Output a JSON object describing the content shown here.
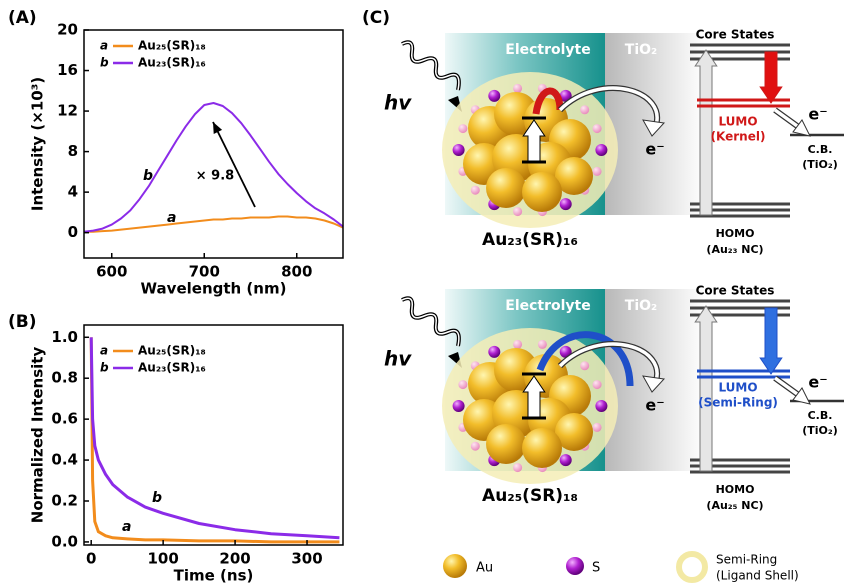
{
  "chart_data": [
    {
      "type": "line",
      "panel_label": "(A)",
      "xlabel": "Wavelength (nm)",
      "ylabel": "Intensity (×10³)",
      "x": [
        570,
        580,
        590,
        600,
        610,
        620,
        630,
        640,
        650,
        660,
        670,
        680,
        690,
        700,
        710,
        720,
        730,
        740,
        750,
        760,
        770,
        780,
        790,
        800,
        810,
        820,
        830,
        840,
        850
      ],
      "xlim": [
        570,
        850
      ],
      "xticks": [
        600,
        700,
        800
      ],
      "ylim": [
        -2.5,
        20
      ],
      "yticks": [
        0,
        4,
        8,
        12,
        16,
        20
      ],
      "annotation": "× 9.8",
      "series": [
        {
          "label": "a",
          "name": "Au₂₅(SR)₁₈",
          "color": "#f28c1c",
          "values": [
            0.1,
            0.1,
            0.15,
            0.2,
            0.3,
            0.4,
            0.5,
            0.6,
            0.7,
            0.8,
            0.9,
            1.0,
            1.1,
            1.2,
            1.3,
            1.3,
            1.4,
            1.4,
            1.5,
            1.5,
            1.5,
            1.6,
            1.6,
            1.5,
            1.5,
            1.4,
            1.2,
            0.9,
            0.5
          ]
        },
        {
          "label": "b",
          "name": "Au₂₃(SR)₁₆",
          "color": "#8b2be8",
          "values": [
            0.1,
            0.2,
            0.4,
            0.8,
            1.4,
            2.2,
            3.3,
            4.6,
            6.1,
            7.6,
            9.1,
            10.5,
            11.7,
            12.6,
            12.8,
            12.5,
            11.8,
            10.8,
            9.6,
            8.3,
            7.0,
            5.8,
            4.8,
            3.9,
            3.1,
            2.4,
            1.9,
            1.3,
            0.6
          ]
        }
      ]
    },
    {
      "type": "line",
      "panel_label": "(B)",
      "xlabel": "Time (ns)",
      "ylabel": "Normalized Intensity",
      "x": [
        0,
        2,
        5,
        10,
        20,
        30,
        50,
        75,
        100,
        150,
        200,
        250,
        300,
        345
      ],
      "xlim": [
        -10,
        350
      ],
      "xticks": [
        0,
        100,
        200,
        300
      ],
      "ylim": [
        -0.015,
        1.06
      ],
      "yticks": [
        {
          "value": 0,
          "label": "0.0"
        },
        0.2,
        0.4,
        0.6,
        0.8,
        {
          "value": 1,
          "label": "1.0"
        }
      ],
      "series": [
        {
          "label": "a",
          "name": "Au₂₅(SR)₁₈",
          "color": "#f28c1c",
          "values": [
            1.0,
            0.3,
            0.1,
            0.05,
            0.03,
            0.02,
            0.015,
            0.01,
            0.01,
            0.005,
            0.005,
            0.0,
            0.0,
            0.0
          ]
        },
        {
          "label": "b",
          "name": "Au₂₃(SR)₁₆",
          "color": "#8b2be8",
          "values": [
            1.0,
            0.6,
            0.47,
            0.4,
            0.33,
            0.28,
            0.22,
            0.17,
            0.14,
            0.09,
            0.06,
            0.04,
            0.03,
            0.02
          ]
        }
      ]
    }
  ],
  "diagram": {
    "panel_label": "(C)",
    "schemes": [
      {
        "electrolyte": "Electrolyte",
        "tio2": "TiO₂",
        "light": "hv",
        "electron": "e⁻",
        "cluster": "Au₂₃(SR)₁₆",
        "core_states": "Core States",
        "lumo": "LUMO",
        "lumo_type": "(Kernel)",
        "transfer_electron": "e⁻",
        "cb": "C.B.",
        "cb_material": "(TiO₂)",
        "homo": "HOMO",
        "homo_material": "(Au₂₃ NC)"
      },
      {
        "electrolyte": "Electrolyte",
        "tio2": "TiO₂",
        "light": "hv",
        "electron": "e⁻",
        "cluster": "Au₂₅(SR)₁₈",
        "core_states": "Core States",
        "lumo": "LUMO",
        "lumo_type": "(Semi-Ring)",
        "transfer_electron": "e⁻",
        "cb": "C.B.",
        "cb_material": "(TiO₂)",
        "homo": "HOMO",
        "homo_material": "(Au₂₅ NC)"
      }
    ],
    "legend": {
      "au": "Au",
      "s": "S",
      "ring": "Semi-Ring",
      "ring_note": "(Ligand Shell)"
    }
  }
}
